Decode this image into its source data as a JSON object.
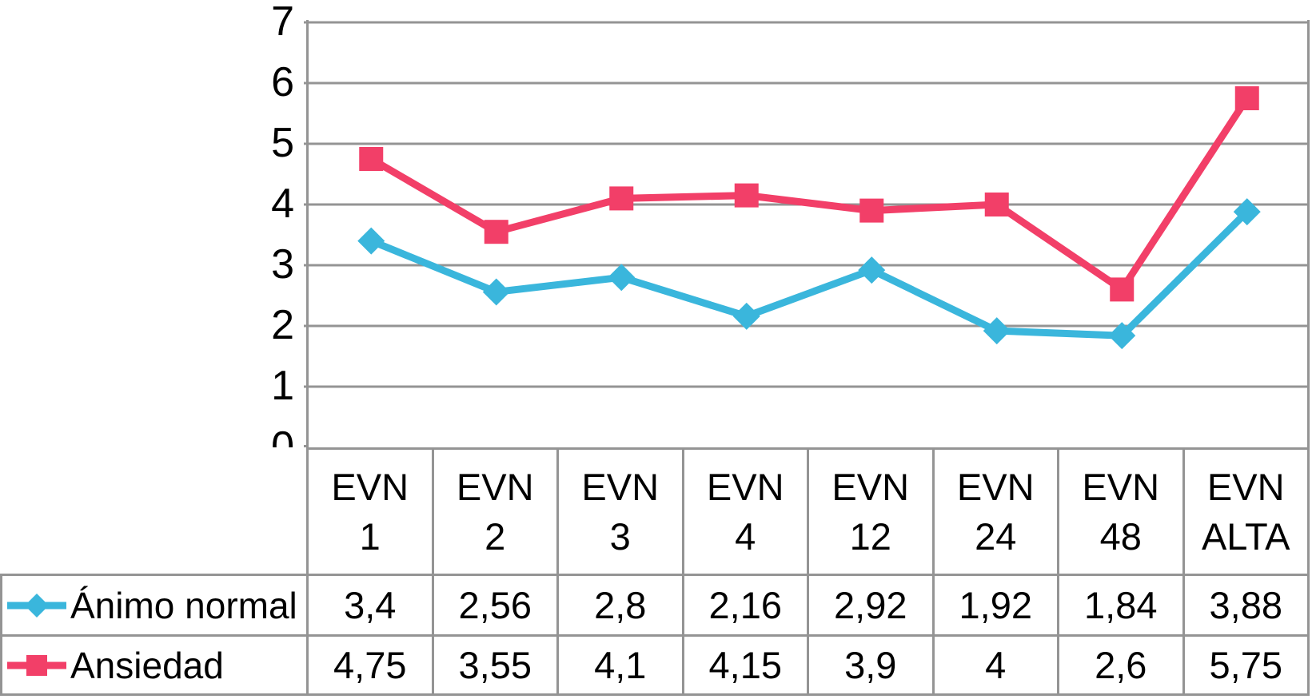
{
  "chart_data": {
    "type": "line",
    "title": "",
    "xlabel": "",
    "ylabel": "",
    "categories": [
      "EVN 1",
      "EVN 2",
      "EVN 3",
      "EVN 4",
      "EVN 12",
      "EVN 24",
      "EVN 48",
      "EVN ALTA"
    ],
    "series": [
      {
        "name": "Ánimo normal",
        "marker": "diamond",
        "color": "#3ab6dc",
        "values": [
          3.4,
          2.56,
          2.8,
          2.16,
          2.92,
          1.92,
          1.84,
          3.88
        ],
        "values_display": [
          "3,4",
          "2,56",
          "2,8",
          "2,16",
          "2,92",
          "1,92",
          "1,84",
          "3,88"
        ]
      },
      {
        "name": "Ansiedad",
        "marker": "square",
        "color": "#f23f68",
        "values": [
          4.75,
          3.55,
          4.1,
          4.15,
          3.9,
          4,
          2.6,
          5.75
        ],
        "values_display": [
          "4,75",
          "3,55",
          "4,1",
          "4,15",
          "3,9",
          "4",
          "2,6",
          "5,75"
        ]
      }
    ],
    "ylim": [
      0,
      7
    ],
    "yticks": [
      0,
      1,
      2,
      3,
      4,
      5,
      6,
      7
    ],
    "grid": true,
    "legend_position": "data-table-left",
    "decimal_separator": ",",
    "colors": {
      "gridline": "#949494",
      "table_border": "#949494",
      "text": "#000000",
      "background": "#ffffff"
    }
  }
}
